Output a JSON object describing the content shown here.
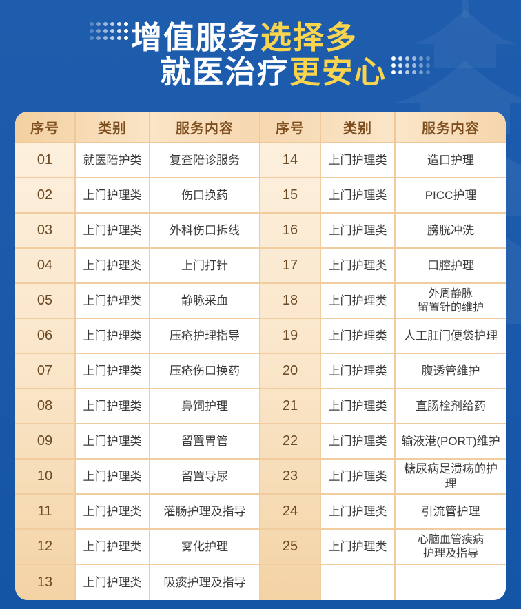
{
  "title": {
    "line1_white": "增值服务",
    "line1_yellow": "选择多",
    "line2_white": "就医治疗",
    "line2_yellow": "更安心"
  },
  "colors": {
    "background": "#1a58a9",
    "title_yellow": "#f9d54f",
    "title_white": "#ffffff",
    "header_text": "#7d4e1f",
    "number_text": "#6b4a26",
    "body_text": "#3b3b3b",
    "cell_border": "#f1cc9e",
    "number_column_top": "#fdf1e0",
    "number_column_bottom": "#f3d3a4"
  },
  "table": {
    "headers": [
      "序号",
      "类别",
      "服务内容"
    ],
    "left_rows": [
      {
        "no": "01",
        "category": "就医陪护类",
        "service": "复查陪诊服务"
      },
      {
        "no": "02",
        "category": "上门护理类",
        "service": "伤口换药"
      },
      {
        "no": "03",
        "category": "上门护理类",
        "service": "外科伤口拆线"
      },
      {
        "no": "04",
        "category": "上门护理类",
        "service": "上门打针"
      },
      {
        "no": "05",
        "category": "上门护理类",
        "service": "静脉采血"
      },
      {
        "no": "06",
        "category": "上门护理类",
        "service": "压疮护理指导"
      },
      {
        "no": "07",
        "category": "上门护理类",
        "service": "压疮伤口换药"
      },
      {
        "no": "08",
        "category": "上门护理类",
        "service": "鼻饲护理"
      },
      {
        "no": "09",
        "category": "上门护理类",
        "service": "留置胃管"
      },
      {
        "no": "10",
        "category": "上门护理类",
        "service": "留置导尿"
      },
      {
        "no": "11",
        "category": "上门护理类",
        "service": "灌肠护理及指导"
      },
      {
        "no": "12",
        "category": "上门护理类",
        "service": "雾化护理"
      },
      {
        "no": "13",
        "category": "上门护理类",
        "service": "吸痰护理及指导"
      }
    ],
    "right_rows": [
      {
        "no": "14",
        "category": "上门护理类",
        "service": "造口护理"
      },
      {
        "no": "15",
        "category": "上门护理类",
        "service": "PICC护理"
      },
      {
        "no": "16",
        "category": "上门护理类",
        "service": "膀胱冲洗"
      },
      {
        "no": "17",
        "category": "上门护理类",
        "service": "口腔护理"
      },
      {
        "no": "18",
        "category": "上门护理类",
        "service": "外周静脉\n留置针的维护"
      },
      {
        "no": "19",
        "category": "上门护理类",
        "service": "人工肛门便袋护理"
      },
      {
        "no": "20",
        "category": "上门护理类",
        "service": "腹透管维护"
      },
      {
        "no": "21",
        "category": "上门护理类",
        "service": "直肠栓剂给药"
      },
      {
        "no": "22",
        "category": "上门护理类",
        "service": "输液港(PORT)维护"
      },
      {
        "no": "23",
        "category": "上门护理类",
        "service": "糖尿病足溃疡的护理"
      },
      {
        "no": "24",
        "category": "上门护理类",
        "service": "引流管护理"
      },
      {
        "no": "25",
        "category": "上门护理类",
        "service": "心脑血管疾病\n护理及指导"
      },
      {
        "no": "",
        "category": "",
        "service": ""
      }
    ]
  }
}
